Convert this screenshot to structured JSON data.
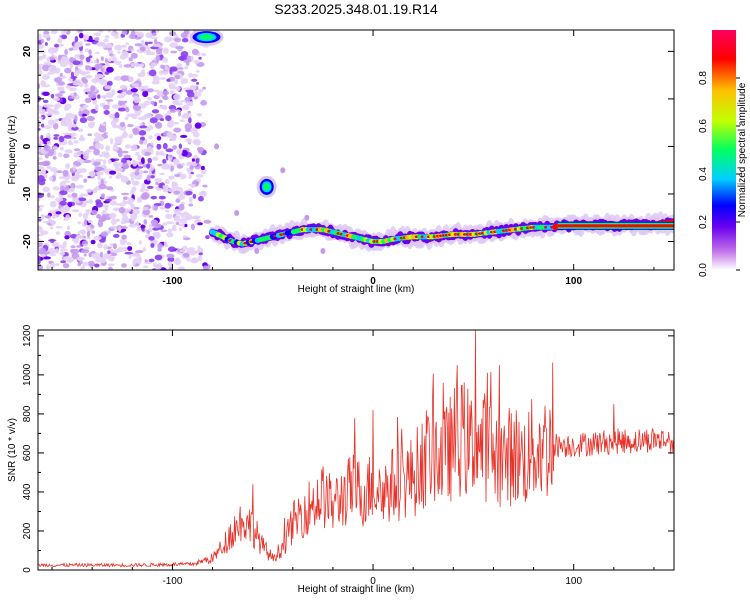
{
  "page_title": "S233.2025.348.01.19.R14",
  "chart_data": [
    {
      "type": "heatmap",
      "title": "S233.2025.348.01.19.R14",
      "xlabel": "Height of straight line (km)",
      "ylabel": "Frequency (Hz)",
      "xlim": [
        -167,
        150
      ],
      "ylim": [
        -26,
        24.5
      ],
      "xticks": [
        -100,
        0,
        100
      ],
      "yticks": [
        -20,
        -10,
        0,
        10,
        20
      ],
      "noise_region_x": [
        -167,
        -85
      ],
      "signal_track": {
        "x": [
          -80,
          -75,
          -70,
          -65,
          -60,
          -55,
          -50,
          -45,
          -40,
          -35,
          -30,
          -25,
          -20,
          -15,
          -10,
          -5,
          0,
          5,
          10,
          20,
          30,
          40,
          50,
          60,
          70,
          80,
          90,
          100,
          110,
          120,
          130,
          140,
          150
        ],
        "y": [
          -18,
          -19,
          -20,
          -20.5,
          -20,
          -19.5,
          -19,
          -18.5,
          -18,
          -17.5,
          -17.5,
          -17.5,
          -18,
          -18.5,
          -19,
          -19.5,
          -20,
          -20,
          -19.5,
          -19,
          -19,
          -18.5,
          -18.5,
          -18,
          -17.5,
          -17,
          -17,
          -16.5,
          -16.5,
          -16.5,
          -16.5,
          -16.5,
          -16
        ]
      },
      "blobs": [
        {
          "x": -53,
          "y": -8.5,
          "label": "isolated blob"
        },
        {
          "x": -83,
          "y": 23,
          "label": "upper blob"
        }
      ],
      "colorbar": {
        "label": "Normalized spectral amplitude",
        "range": [
          0,
          1
        ],
        "ticks": [
          0.0,
          0.2,
          0.4,
          0.6,
          0.8
        ],
        "tick_labels": [
          "0.0",
          "0.2",
          "0.4",
          "0.6",
          "0.8"
        ],
        "colormap": [
          "#ffffff",
          "#c070e8",
          "#6a00f0",
          "#0000ff",
          "#00d0ff",
          "#00ff60",
          "#c0ff00",
          "#ffc000",
          "#ff0000",
          "#ff0060"
        ]
      }
    },
    {
      "type": "line",
      "xlabel": "Height of straight line (km)",
      "ylabel": "SNR (10 * v/v)",
      "xlim": [
        -167,
        150
      ],
      "ylim": [
        0,
        1230
      ],
      "xticks": [
        -100,
        0,
        100
      ],
      "yticks": [
        0,
        200,
        400,
        600,
        800,
        1000,
        1200
      ],
      "color": "#e8332a",
      "series_envelope": {
        "x": [
          -167,
          -120,
          -90,
          -80,
          -75,
          -70,
          -65,
          -60,
          -55,
          -50,
          -45,
          -40,
          -35,
          -30,
          -25,
          -20,
          -15,
          -10,
          -5,
          0,
          5,
          10,
          15,
          20,
          25,
          30,
          35,
          40,
          45,
          50,
          55,
          60,
          65,
          70,
          75,
          80,
          90,
          100,
          110,
          120,
          130,
          140,
          150
        ],
        "y": [
          25,
          25,
          30,
          60,
          120,
          200,
          260,
          220,
          120,
          60,
          120,
          240,
          300,
          340,
          380,
          330,
          380,
          420,
          390,
          430,
          400,
          440,
          460,
          480,
          560,
          620,
          560,
          650,
          680,
          620,
          640,
          600,
          560,
          600,
          560,
          620,
          640,
          640,
          650,
          660,
          660,
          670,
          660
        ]
      },
      "peaks": [
        {
          "x": -60,
          "y": 440
        },
        {
          "x": 0,
          "y": 820
        },
        {
          "x": 35,
          "y": 960
        },
        {
          "x": 42,
          "y": 1050
        },
        {
          "x": 51,
          "y": 1230
        },
        {
          "x": 57,
          "y": 1010
        },
        {
          "x": 120,
          "y": 850
        }
      ]
    }
  ]
}
